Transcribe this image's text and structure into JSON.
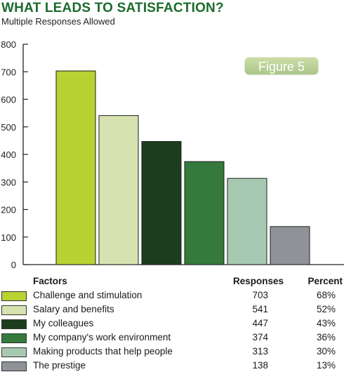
{
  "title": "WHAT LEADS TO SATISFACTION?",
  "subtitle": "Multiple Responses Allowed",
  "figure_badge": "Figure 5",
  "table": {
    "headers": {
      "factors": "Factors",
      "responses": "Responses",
      "percent": "Percent"
    },
    "rows": [
      {
        "factor": "Challenge and stimulation",
        "responses": "703",
        "percent": "68%"
      },
      {
        "factor": "Salary and benefits",
        "responses": "541",
        "percent": "52%"
      },
      {
        "factor": "My colleagues",
        "responses": "447",
        "percent": "43%"
      },
      {
        "factor": "My company's work environment",
        "responses": "374",
        "percent": "36%"
      },
      {
        "factor": "Making products that help people",
        "responses": "313",
        "percent": "30%"
      },
      {
        "factor": "The prestige",
        "responses": "138",
        "percent": "13%"
      }
    ]
  },
  "chart_data": {
    "type": "bar",
    "categories": [
      "Challenge and stimulation",
      "Salary and benefits",
      "My colleagues",
      "My company's work environment",
      "Making products that help people",
      "The prestige"
    ],
    "values": [
      703,
      541,
      447,
      374,
      313,
      138
    ],
    "colors": [
      "#b7d232",
      "#d6e3b0",
      "#1d3e1e",
      "#357a3c",
      "#a8c9b1",
      "#8f9297"
    ],
    "ylim": [
      0,
      800
    ],
    "yticks": [
      "0",
      "100",
      "200",
      "300",
      "400",
      "500",
      "600",
      "700",
      "800"
    ],
    "grid": false,
    "xlabel": "",
    "ylabel": ""
  }
}
